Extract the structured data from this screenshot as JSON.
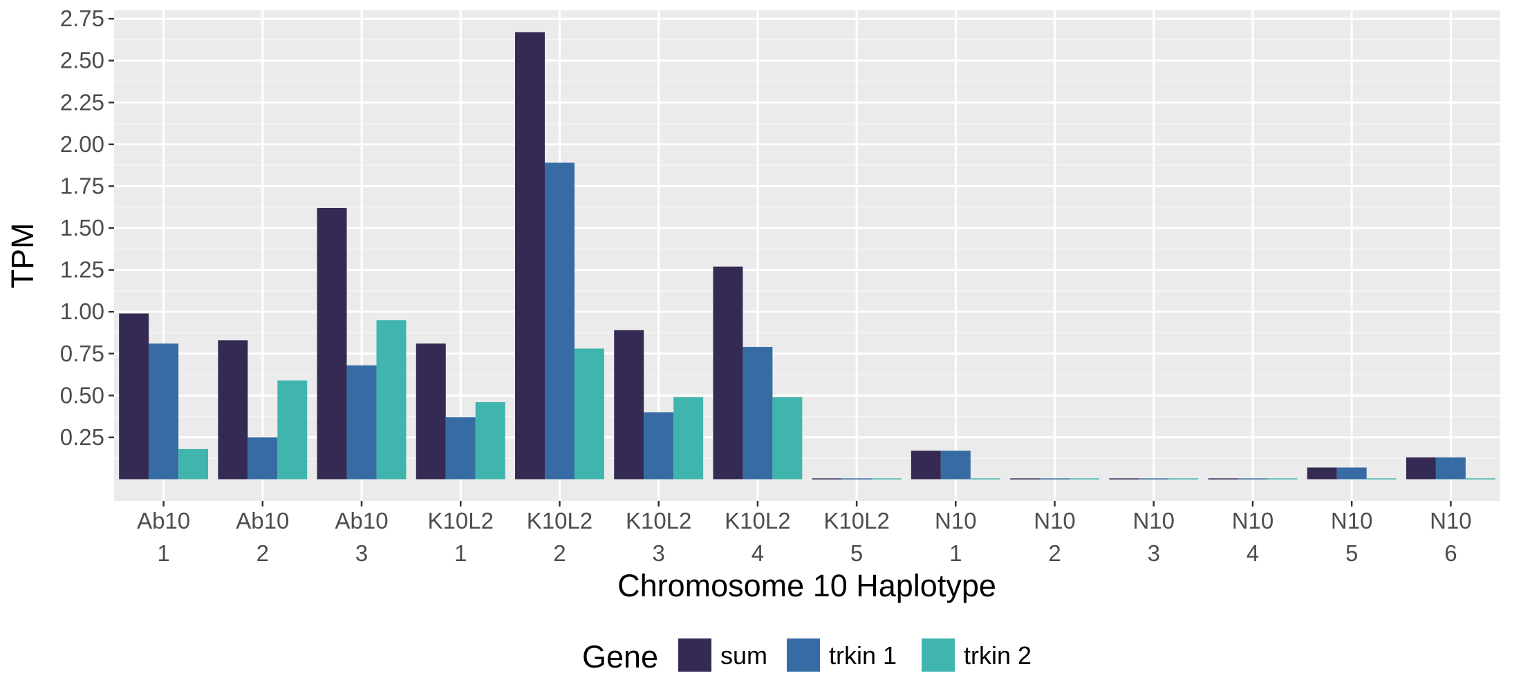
{
  "chart_data": {
    "type": "bar",
    "title": "",
    "xlabel": "Chromosome 10 Haplotype",
    "ylabel": "TPM",
    "ylim": [
      -0.13,
      2.8
    ],
    "yticks": [
      "0.25",
      "0.50",
      "0.75",
      "1.00",
      "1.25",
      "1.50",
      "1.75",
      "2.00",
      "2.25",
      "2.50",
      "2.75"
    ],
    "grid": true,
    "legend_position": "bottom",
    "legend_title": "Gene",
    "categories": [
      {
        "line1": "Ab10",
        "line2": "1"
      },
      {
        "line1": "Ab10",
        "line2": "2"
      },
      {
        "line1": "Ab10",
        "line2": "3"
      },
      {
        "line1": "K10L2",
        "line2": "1"
      },
      {
        "line1": "K10L2",
        "line2": "2"
      },
      {
        "line1": "K10L2",
        "line2": "3"
      },
      {
        "line1": "K10L2",
        "line2": "4"
      },
      {
        "line1": "K10L2",
        "line2": "5"
      },
      {
        "line1": "N10",
        "line2": "1"
      },
      {
        "line1": "N10",
        "line2": "2"
      },
      {
        "line1": "N10",
        "line2": "3"
      },
      {
        "line1": "N10",
        "line2": "4"
      },
      {
        "line1": "N10",
        "line2": "5"
      },
      {
        "line1": "N10",
        "line2": "6"
      }
    ],
    "series": [
      {
        "name": "sum",
        "color": "#352a54",
        "values": [
          0.99,
          0.83,
          1.62,
          0.81,
          2.67,
          0.89,
          1.27,
          0.005,
          0.17,
          0.005,
          0.005,
          0.005,
          0.07,
          0.13
        ]
      },
      {
        "name": "trkin 1",
        "color": "#366ca3",
        "values": [
          0.81,
          0.25,
          0.68,
          0.37,
          1.89,
          0.4,
          0.79,
          0.005,
          0.17,
          0.005,
          0.005,
          0.005,
          0.07,
          0.13
        ]
      },
      {
        "name": "trkin 2",
        "color": "#40b5ad",
        "values": [
          0.18,
          0.59,
          0.95,
          0.46,
          0.78,
          0.49,
          0.49,
          0.005,
          0.005,
          0.005,
          0.005,
          0.005,
          0.005,
          0.005
        ]
      }
    ],
    "panel_background": "#ebebeb"
  }
}
